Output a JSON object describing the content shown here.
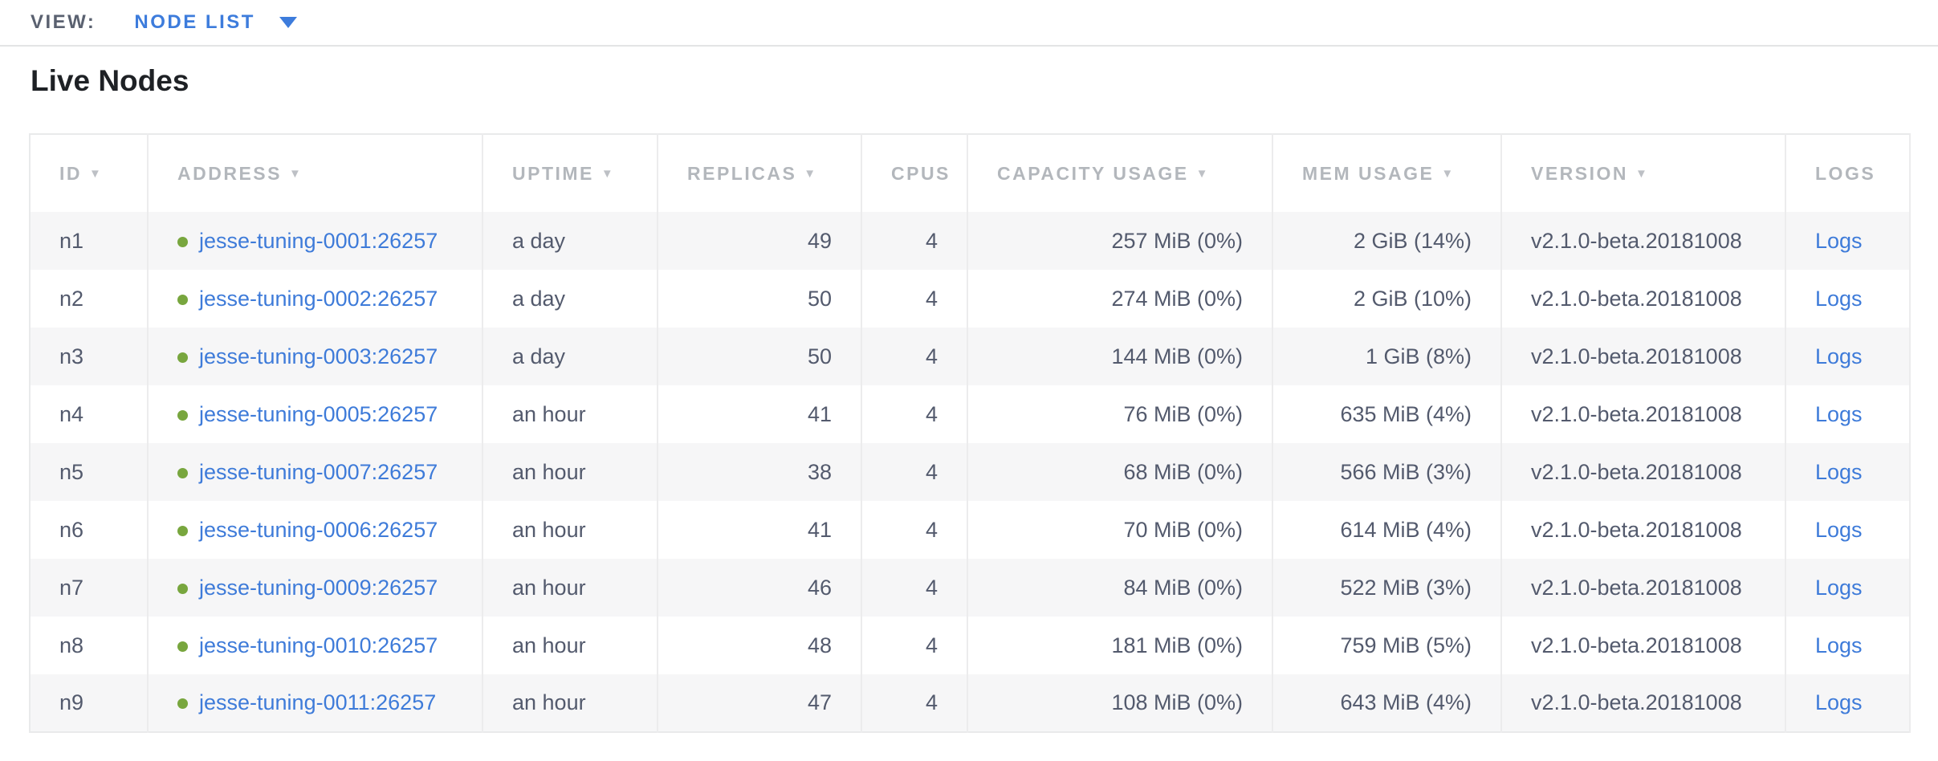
{
  "view_bar": {
    "label": "VIEW:",
    "selected": "NODE LIST"
  },
  "page": {
    "title": "Live Nodes"
  },
  "colors": {
    "link_blue": "#3E7BD9",
    "nav_blue": "#3D7CDC",
    "live_dot_green": "#78A63E",
    "header_gray": "#B3B7BC",
    "data_slate": "#535A6D",
    "stripe_gray": "#F6F6F7",
    "border_gray": "#E9EAEB"
  },
  "table": {
    "sort_icon": "▼",
    "columns": [
      {
        "key": "id",
        "label": "ID",
        "sortable": true,
        "align": "left"
      },
      {
        "key": "address",
        "label": "ADDRESS",
        "sortable": true,
        "align": "left"
      },
      {
        "key": "uptime",
        "label": "UPTIME",
        "sortable": true,
        "align": "left"
      },
      {
        "key": "replicas",
        "label": "REPLICAS",
        "sortable": true,
        "align": "left"
      },
      {
        "key": "cpus",
        "label": "CPUS",
        "sortable": false,
        "align": "left"
      },
      {
        "key": "capacity",
        "label": "CAPACITY USAGE",
        "sortable": true,
        "align": "left"
      },
      {
        "key": "mem",
        "label": "MEM USAGE",
        "sortable": true,
        "align": "left"
      },
      {
        "key": "version",
        "label": "VERSION",
        "sortable": true,
        "align": "left"
      },
      {
        "key": "logs",
        "label": "LOGS",
        "sortable": false,
        "align": "left"
      }
    ],
    "rows": [
      {
        "id": "n1",
        "address": "jesse-tuning-0001:26257",
        "uptime": "a day",
        "replicas": "49",
        "cpus": "4",
        "capacity": "257 MiB (0%)",
        "mem": "2 GiB (14%)",
        "version": "v2.1.0-beta.20181008",
        "logs": "Logs"
      },
      {
        "id": "n2",
        "address": "jesse-tuning-0002:26257",
        "uptime": "a day",
        "replicas": "50",
        "cpus": "4",
        "capacity": "274 MiB (0%)",
        "mem": "2 GiB (10%)",
        "version": "v2.1.0-beta.20181008",
        "logs": "Logs"
      },
      {
        "id": "n3",
        "address": "jesse-tuning-0003:26257",
        "uptime": "a day",
        "replicas": "50",
        "cpus": "4",
        "capacity": "144 MiB (0%)",
        "mem": "1 GiB (8%)",
        "version": "v2.1.0-beta.20181008",
        "logs": "Logs"
      },
      {
        "id": "n4",
        "address": "jesse-tuning-0005:26257",
        "uptime": "an hour",
        "replicas": "41",
        "cpus": "4",
        "capacity": "76 MiB (0%)",
        "mem": "635 MiB (4%)",
        "version": "v2.1.0-beta.20181008",
        "logs": "Logs"
      },
      {
        "id": "n5",
        "address": "jesse-tuning-0007:26257",
        "uptime": "an hour",
        "replicas": "38",
        "cpus": "4",
        "capacity": "68 MiB (0%)",
        "mem": "566 MiB (3%)",
        "version": "v2.1.0-beta.20181008",
        "logs": "Logs"
      },
      {
        "id": "n6",
        "address": "jesse-tuning-0006:26257",
        "uptime": "an hour",
        "replicas": "41",
        "cpus": "4",
        "capacity": "70 MiB (0%)",
        "mem": "614 MiB (4%)",
        "version": "v2.1.0-beta.20181008",
        "logs": "Logs"
      },
      {
        "id": "n7",
        "address": "jesse-tuning-0009:26257",
        "uptime": "an hour",
        "replicas": "46",
        "cpus": "4",
        "capacity": "84 MiB (0%)",
        "mem": "522 MiB (3%)",
        "version": "v2.1.0-beta.20181008",
        "logs": "Logs"
      },
      {
        "id": "n8",
        "address": "jesse-tuning-0010:26257",
        "uptime": "an hour",
        "replicas": "48",
        "cpus": "4",
        "capacity": "181 MiB (0%)",
        "mem": "759 MiB (5%)",
        "version": "v2.1.0-beta.20181008",
        "logs": "Logs"
      },
      {
        "id": "n9",
        "address": "jesse-tuning-0011:26257",
        "uptime": "an hour",
        "replicas": "47",
        "cpus": "4",
        "capacity": "108 MiB (0%)",
        "mem": "643 MiB (4%)",
        "version": "v2.1.0-beta.20181008",
        "logs": "Logs"
      }
    ],
    "cell_align": {
      "id": "left",
      "address": "left",
      "uptime": "left",
      "replicas": "right",
      "cpus": "right",
      "capacity": "right",
      "mem": "right",
      "version": "left",
      "logs": "left"
    }
  }
}
